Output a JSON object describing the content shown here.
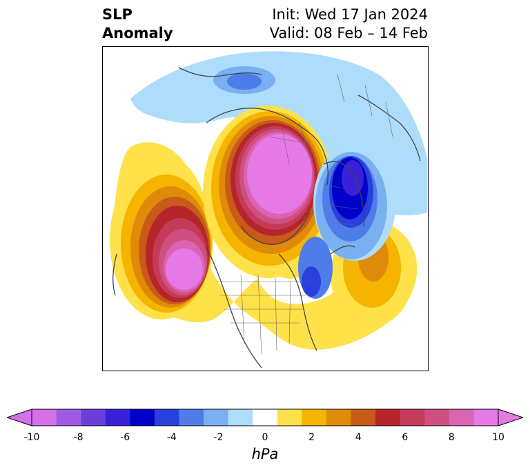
{
  "title": {
    "left_line1": "SLP",
    "left_line2": "Anomaly",
    "right_line1": "Init: Wed 17 Jan 2024",
    "right_line2": "Valid: 08 Feb – 14 Feb"
  },
  "colorbar": {
    "unit": "hPa",
    "ticks": [
      "-10",
      "-8",
      "-6",
      "-4",
      "-2",
      "0",
      "2",
      "4",
      "6",
      "8",
      "10"
    ],
    "colors": [
      "#d471e8",
      "#a05be6",
      "#6a3fd9",
      "#3a20d8",
      "#0000c8",
      "#2a40dd",
      "#4f7de8",
      "#79b0f2",
      "#aedcfb",
      "#ffffff",
      "#ffe14a",
      "#f4b400",
      "#e08a0a",
      "#c85a1a",
      "#b5262a",
      "#c43b5a",
      "#cf5080",
      "#da63b2",
      "#e57ae6"
    ],
    "extend_low_color": "#d471e8",
    "extend_high_color": "#e57ae6"
  }
}
